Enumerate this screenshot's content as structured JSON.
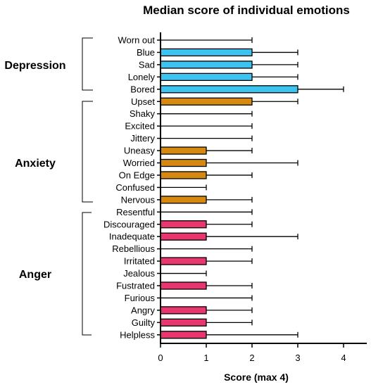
{
  "chart_data": {
    "type": "bar",
    "orientation": "horizontal",
    "title": "Median score of individual emotions",
    "xlabel": "Score (max 4)",
    "ylabel": "",
    "xlim": [
      0,
      4.5
    ],
    "xticks": [
      0,
      1,
      2,
      3,
      4
    ],
    "grid": false,
    "legend": "none",
    "categories": [
      "Worn out",
      "Blue",
      "Sad",
      "Lonely",
      "Bored",
      "Upset",
      "Shaky",
      "Excited",
      "Jittery",
      "Uneasy",
      "Worried",
      "On Edge",
      "Confused",
      "Nervous",
      "Resentful",
      "Discouraged",
      "Inadequate",
      "Rebellious",
      "Irritated",
      "Jealous",
      "Fustrated",
      "Furious",
      "Angry",
      "Guilty",
      "Helpless"
    ],
    "values": [
      0,
      2,
      2,
      2,
      3,
      2,
      0,
      0,
      0,
      1,
      1,
      1,
      0,
      1,
      0,
      1,
      1,
      0,
      1,
      0,
      1,
      0,
      1,
      1,
      1
    ],
    "error_upper": [
      2,
      3,
      3,
      3,
      4,
      3,
      2,
      2,
      2,
      2,
      3,
      2,
      1,
      2,
      2,
      2,
      3,
      2,
      2,
      1,
      2,
      2,
      2,
      2,
      3
    ],
    "groups": [
      {
        "name": "Depression",
        "start": 0,
        "end": 4,
        "color": "#3cc3f0"
      },
      {
        "name": "Anxiety",
        "start": 5,
        "end": 13,
        "color": "#d68910"
      },
      {
        "name": "Anger",
        "start": 14,
        "end": 24,
        "color": "#e8366e"
      }
    ]
  }
}
